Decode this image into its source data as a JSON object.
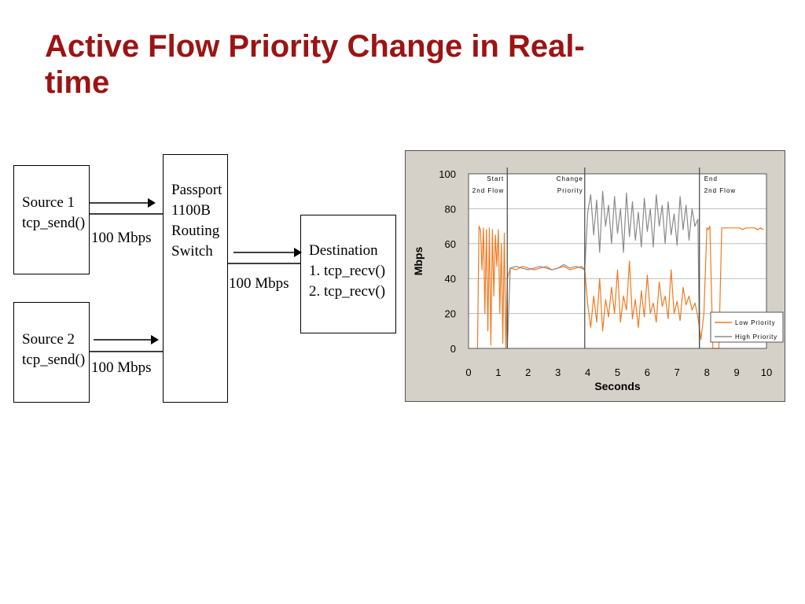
{
  "title": "Active Flow Priority Change in Real-time",
  "diagram": {
    "source1": [
      "Source 1",
      "tcp_send()"
    ],
    "source2": [
      "Source 2",
      "tcp_send()"
    ],
    "switch": [
      "Passport",
      "1100B",
      "Routing",
      "Switch"
    ],
    "destination": [
      "Destination",
      "1. tcp_recv()",
      "2. tcp_recv()"
    ],
    "link1_label": "100 Mbps",
    "link2_label": "100 Mbps",
    "link_out_label": "100 Mbps"
  },
  "colors": {
    "title": "#9b1414",
    "low_priority": "#f07a20",
    "high_priority": "#8a8a8a",
    "chart_background": "#d6d1c8"
  },
  "chart_data": {
    "type": "line",
    "title": "",
    "xlabel": "Seconds",
    "ylabel": "Mbps",
    "xlim": [
      0,
      10
    ],
    "ylim": [
      0,
      100
    ],
    "xticks": [
      0,
      1,
      2,
      3,
      4,
      5,
      6,
      7,
      8,
      9,
      10
    ],
    "yticks": [
      0,
      20,
      40,
      60,
      80,
      100
    ],
    "grid": true,
    "legend_position": "bottom-right",
    "annotations": [
      {
        "x": 1.3,
        "lines": [
          "Start",
          "2nd Flow"
        ]
      },
      {
        "x": 3.9,
        "lines": [
          "Change",
          "Priority"
        ]
      },
      {
        "x": 7.75,
        "lines": [
          "End",
          "2nd Flow"
        ]
      }
    ],
    "series": [
      {
        "name": "Low Priority",
        "x": [
          0.3,
          0.35,
          0.4,
          0.45,
          0.5,
          0.55,
          0.6,
          0.65,
          0.7,
          0.75,
          0.8,
          0.85,
          0.9,
          0.95,
          1.0,
          1.05,
          1.1,
          1.15,
          1.2,
          1.25,
          1.3,
          1.4,
          1.6,
          1.8,
          2.0,
          2.2,
          2.4,
          2.6,
          2.8,
          3.0,
          3.2,
          3.4,
          3.6,
          3.8,
          3.9,
          4.0,
          4.1,
          4.2,
          4.3,
          4.4,
          4.5,
          4.6,
          4.7,
          4.8,
          4.9,
          5.0,
          5.1,
          5.2,
          5.3,
          5.4,
          5.5,
          5.6,
          5.7,
          5.8,
          5.9,
          6.0,
          6.1,
          6.2,
          6.3,
          6.4,
          6.5,
          6.6,
          6.7,
          6.8,
          6.9,
          7.0,
          7.1,
          7.2,
          7.3,
          7.4,
          7.5,
          7.6,
          7.7,
          7.8,
          7.9,
          8.0,
          8.05,
          8.1,
          8.2,
          8.3,
          8.4,
          8.5,
          8.6,
          8.7,
          8.8,
          8.9,
          9.0,
          9.1,
          9.2,
          9.3,
          9.4,
          9.5,
          9.6,
          9.7,
          9.8,
          9.9
        ],
        "y": [
          0,
          70,
          68,
          45,
          69,
          20,
          68,
          10,
          69,
          2,
          68,
          30,
          65,
          47,
          68,
          20,
          60,
          3,
          66,
          0,
          40,
          46,
          45,
          47,
          46,
          45,
          46,
          47,
          45,
          46,
          47,
          45,
          46,
          47,
          45,
          25,
          12,
          30,
          15,
          40,
          10,
          28,
          18,
          35,
          20,
          45,
          15,
          30,
          22,
          50,
          17,
          28,
          12,
          33,
          18,
          42,
          20,
          26,
          15,
          38,
          24,
          30,
          17,
          45,
          20,
          27,
          16,
          35,
          25,
          30,
          22,
          26,
          18,
          5,
          20,
          69,
          68,
          70,
          0,
          0,
          0,
          69,
          69,
          69,
          69,
          69,
          69,
          69,
          68,
          69,
          69,
          69,
          69,
          68,
          69,
          68
        ]
      },
      {
        "name": "High Priority",
        "x": [
          1.3,
          1.4,
          1.6,
          1.8,
          2.0,
          2.2,
          2.4,
          2.6,
          2.8,
          3.0,
          3.2,
          3.4,
          3.6,
          3.8,
          3.9,
          4.0,
          4.1,
          4.2,
          4.3,
          4.4,
          4.5,
          4.6,
          4.7,
          4.8,
          4.9,
          5.0,
          5.1,
          5.2,
          5.3,
          5.4,
          5.5,
          5.6,
          5.7,
          5.8,
          5.9,
          6.0,
          6.1,
          6.2,
          6.3,
          6.4,
          6.5,
          6.6,
          6.7,
          6.8,
          6.9,
          7.0,
          7.1,
          7.2,
          7.3,
          7.4,
          7.5,
          7.6,
          7.7,
          7.75
        ],
        "y": [
          0,
          46,
          47,
          46,
          45,
          46,
          47,
          46,
          45,
          46,
          48,
          46,
          47,
          46,
          45,
          78,
          88,
          65,
          85,
          55,
          90,
          70,
          82,
          60,
          87,
          66,
          80,
          55,
          89,
          64,
          84,
          62,
          78,
          58,
          86,
          67,
          80,
          58,
          88,
          70,
          82,
          60,
          84,
          65,
          77,
          59,
          87,
          68,
          82,
          62,
          80,
          70,
          74,
          0
        ]
      }
    ]
  }
}
